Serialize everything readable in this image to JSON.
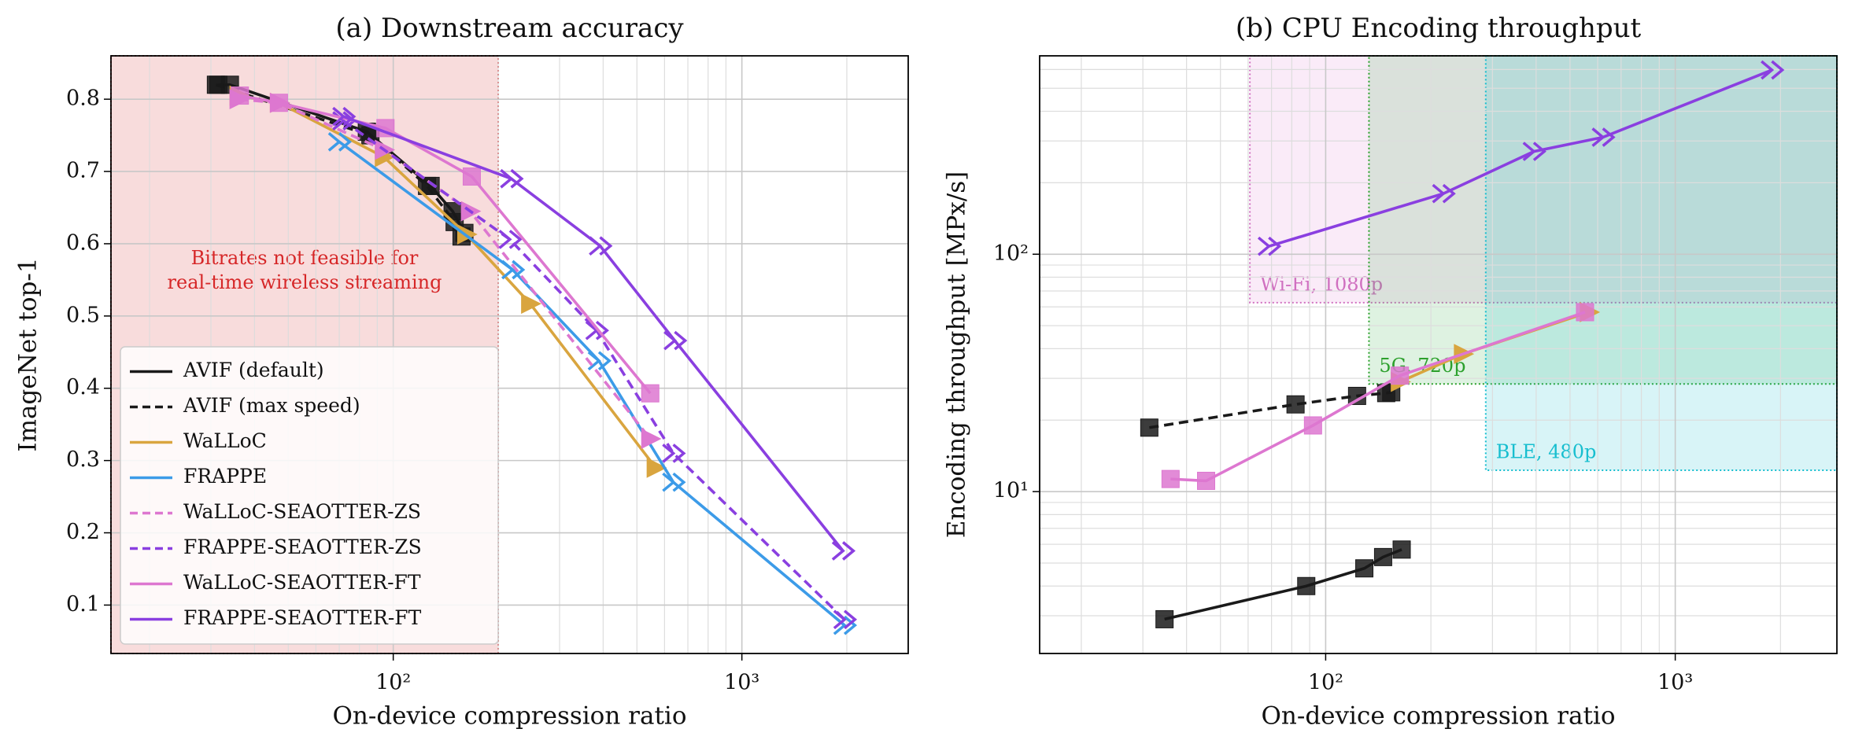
{
  "chart_data": [
    {
      "type": "line",
      "title": "(a) Downstream accuracy",
      "xlabel": "On-device compression ratio",
      "ylabel": "ImageNet top-1",
      "xscale": "log",
      "yscale": "linear",
      "grid": true,
      "minor_grid": true,
      "xlim": [
        15.5,
        3000
      ],
      "ylim": [
        0.033,
        0.86
      ],
      "xticks": [
        {
          "value": 100,
          "label": "10²"
        },
        {
          "value": 1000,
          "label": "10³"
        }
      ],
      "yticks": [
        0.1,
        0.2,
        0.3,
        0.4,
        0.5,
        0.6,
        0.7,
        0.8
      ],
      "legend": "lower left",
      "shaded_regions": [
        {
          "x_max": 200,
          "color": "#e57373",
          "border": "#d62728",
          "text_color": "#d62728",
          "label_lines": [
            "Bitrates not feasible for",
            "real-time wireless streaming"
          ]
        }
      ],
      "series": [
        {
          "name": "AVIF (default)",
          "color": "#1a1a1a",
          "dash": false,
          "marker": "square",
          "x": [
            31.5,
            34,
            84,
            128,
            148,
            160
          ],
          "values": [
            0.82,
            0.82,
            0.755,
            0.68,
            0.645,
            0.615
          ]
        },
        {
          "name": "AVIF (max speed)",
          "color": "#1a1a1a",
          "dash": true,
          "marker": "square",
          "x": [
            31,
            86,
            125,
            150,
            157
          ],
          "values": [
            0.82,
            0.75,
            0.68,
            0.63,
            0.61
          ]
        },
        {
          "name": "WaLLoC",
          "color": "#d9a53f",
          "dash": false,
          "marker": "triangle",
          "x": [
            36,
            47,
            94,
            162,
            247,
            566
          ],
          "values": [
            0.805,
            0.795,
            0.72,
            0.613,
            0.517,
            0.29
          ]
        },
        {
          "name": "FRAPPE",
          "color": "#3c9be8",
          "dash": false,
          "marker": "chevrons",
          "x": [
            70,
            220,
            389,
            636,
            1970
          ],
          "values": [
            0.741,
            0.564,
            0.438,
            0.27,
            0.072
          ]
        },
        {
          "name": "WaLLoC-SEAOTTER-ZS",
          "color": "#dd77d0",
          "dash": true,
          "marker": "triangle",
          "x": [
            36,
            47,
            94,
            166,
            546
          ],
          "values": [
            0.8,
            0.795,
            0.73,
            0.645,
            0.33
          ]
        },
        {
          "name": "FRAPPE-SEAOTTER-ZS",
          "color": "#8a3fe0",
          "dash": true,
          "marker": "chevrons",
          "x": [
            72,
            216,
            383,
            636,
            1970
          ],
          "values": [
            0.77,
            0.606,
            0.48,
            0.31,
            0.08
          ]
        },
        {
          "name": "WaLLoC-SEAOTTER-FT",
          "color": "#dd77d0",
          "dash": false,
          "marker": "square",
          "x": [
            36.3,
            47,
            95,
            168,
            546
          ],
          "values": [
            0.805,
            0.795,
            0.76,
            0.693,
            0.393
          ]
        },
        {
          "name": "FRAPPE-SEAOTTER-FT",
          "color": "#8a3fe0",
          "dash": false,
          "marker": "chevrons",
          "x": [
            72,
            218,
            392,
            642,
            1950
          ],
          "values": [
            0.776,
            0.69,
            0.597,
            0.466,
            0.175
          ]
        }
      ]
    },
    {
      "type": "line",
      "title": "(b) CPU Encoding throughput",
      "xlabel": "On-device compression ratio",
      "ylabel": "Encoding throughput [MPx/s]",
      "xscale": "log",
      "yscale": "log",
      "grid": true,
      "minor_grid": true,
      "xlim": [
        15.2,
        2900
      ],
      "ylim": [
        2.08,
        685
      ],
      "xticks": [
        {
          "value": 100,
          "label": "10²"
        },
        {
          "value": 1000,
          "label": "10³"
        }
      ],
      "yticks": [
        {
          "value": 10,
          "label": "10¹"
        },
        {
          "value": 100,
          "label": "10²"
        }
      ],
      "shaded_regions": [
        {
          "x_min": 60.7,
          "y_min": 62.5,
          "color": "#e08ad8",
          "border": "#d070c0",
          "text_color": "#d070c0",
          "label_lines": [
            "Wi-Fi, 1080p"
          ]
        },
        {
          "x_min": 133,
          "y_min": 28.4,
          "color": "#3cb44b",
          "border": "#2ca02c",
          "text_color": "#2ca02c",
          "label_lines": [
            "5G, 720p"
          ]
        },
        {
          "x_min": 287,
          "y_min": 12.3,
          "color": "#17becf",
          "border": "#17becf",
          "text_color": "#17becf",
          "label_lines": [
            "BLE, 480p"
          ]
        }
      ],
      "series": [
        {
          "color": "#1a1a1a",
          "dash": false,
          "marker": "square",
          "x": [
            34.6,
            88,
            129,
            146,
            165
          ],
          "values": [
            2.9,
            4.0,
            4.75,
            5.3,
            5.7
          ]
        },
        {
          "color": "#1a1a1a",
          "dash": true,
          "marker": "square",
          "x": [
            31.3,
            82,
            123,
            149,
            154
          ],
          "values": [
            18.6,
            23.3,
            25.3,
            26,
            26.2
          ]
        },
        {
          "color": "#d9a53f",
          "dash": false,
          "marker": "triangle",
          "x": [
            163,
            247,
            566
          ],
          "values": [
            29,
            38,
            57
          ]
        },
        {
          "color": "#dd77d0",
          "dash": false,
          "marker": "square",
          "x": [
            36,
            45.5,
            92,
            163,
            552
          ],
          "values": [
            11.3,
            11.1,
            19,
            30.8,
            57
          ]
        },
        {
          "color": "#8a3fe0",
          "dash": false,
          "marker": "chevrons",
          "x": [
            68.8,
            217,
            394,
            621,
            1890
          ],
          "values": [
            108,
            180,
            271,
            311,
            597
          ]
        }
      ]
    }
  ]
}
